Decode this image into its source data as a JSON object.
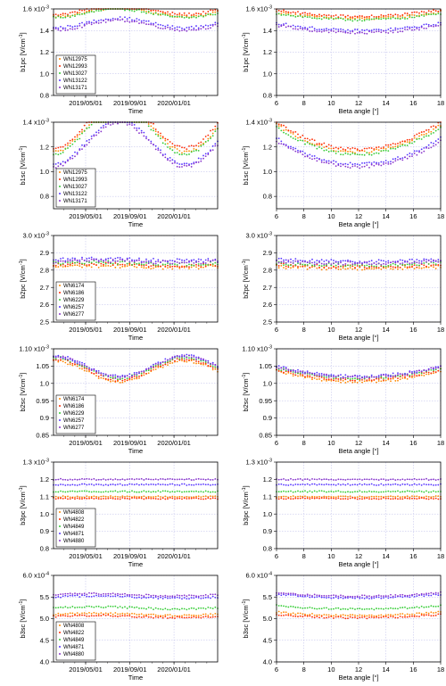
{
  "chart_data": [
    {
      "type": "scatter",
      "panel": "b1pc-time",
      "ylabel_main": "b1pc [V/cm",
      "ylabel_exp": "-1",
      "ylabel_end": "]",
      "xlabel": "Time",
      "x_axis": "time",
      "xlim": [
        "2019-02-01",
        "2020-05-01"
      ],
      "ylim": [
        0.8,
        1.6
      ],
      "yticks": [
        0.8,
        1.0,
        1.2,
        1.4
      ],
      "top_tick_label": "1.6 x10",
      "top_tick_exp": "-3",
      "xticks": [
        {
          "label": "2019/05/01",
          "value": "2019-05-01"
        },
        {
          "label": "2019/09/01",
          "value": "2019-09-01"
        },
        {
          "label": "2020/01/01",
          "value": "2020-01-01"
        }
      ],
      "legend": "bottom-left",
      "series": [
        {
          "name": "WN12975",
          "color": "#ff8800",
          "level": 1.57,
          "amp": 0.04,
          "noise": 0.012
        },
        {
          "name": "WN12993",
          "color": "#ff2a00",
          "level": 1.59,
          "amp": 0.04,
          "noise": 0.012
        },
        {
          "name": "WN13027",
          "color": "#33cc33",
          "level": 1.56,
          "amp": 0.04,
          "noise": 0.012
        },
        {
          "name": "WN13122",
          "color": "#5533ff",
          "level": 1.47,
          "amp": 0.045,
          "noise": 0.012
        },
        {
          "name": "WN13171",
          "color": "#8833cc",
          "level": 1.45,
          "amp": 0.045,
          "noise": 0.012
        }
      ]
    },
    {
      "type": "scatter",
      "panel": "b1pc-beta",
      "ylabel_main": "b1pc [V/cm",
      "ylabel_exp": "-1",
      "ylabel_end": "]",
      "xlabel": "Beta angle [°]",
      "x_axis": "beta",
      "xlim": [
        6,
        18
      ],
      "ylim": [
        0.8,
        1.6
      ],
      "yticks": [
        0.8,
        1.0,
        1.2,
        1.4
      ],
      "top_tick_label": "1.6 x10",
      "top_tick_exp": "-3",
      "xticks": [
        6,
        8,
        10,
        12,
        14,
        16,
        18
      ],
      "series": [
        {
          "name": "WN12975",
          "color": "#ff8800",
          "level": 1.57,
          "amp": 0.06,
          "noise": 0.012
        },
        {
          "name": "WN12993",
          "color": "#ff2a00",
          "level": 1.59,
          "amp": 0.06,
          "noise": 0.012
        },
        {
          "name": "WN13027",
          "color": "#33cc33",
          "level": 1.56,
          "amp": 0.06,
          "noise": 0.012
        },
        {
          "name": "WN13122",
          "color": "#5533ff",
          "level": 1.47,
          "amp": 0.07,
          "noise": 0.012
        },
        {
          "name": "WN13171",
          "color": "#8833cc",
          "level": 1.45,
          "amp": 0.07,
          "noise": 0.012
        }
      ]
    },
    {
      "type": "scatter",
      "panel": "b1sc-time",
      "ylabel_main": "b1sc [V/cm",
      "ylabel_exp": "-1",
      "ylabel_end": "]",
      "xlabel": "Time",
      "x_axis": "time",
      "xlim": [
        "2019-02-01",
        "2020-05-01"
      ],
      "ylim": [
        0.7,
        1.4
      ],
      "yticks": [
        0.8,
        1.0,
        1.2
      ],
      "top_tick_label": "1.4 x10",
      "top_tick_exp": "-3",
      "xticks": [
        {
          "label": "2019/05/01",
          "value": "2019-05-01"
        },
        {
          "label": "2019/09/01",
          "value": "2019-09-01"
        },
        {
          "label": "2020/01/01",
          "value": "2020-01-01"
        }
      ],
      "legend": "bottom-left",
      "series": [
        {
          "name": "WN12975",
          "color": "#ff8800",
          "level": 1.36,
          "amp": 0.2,
          "noise": 0.012
        },
        {
          "name": "WN12993",
          "color": "#ff2a00",
          "level": 1.39,
          "amp": 0.2,
          "noise": 0.012
        },
        {
          "name": "WN13027",
          "color": "#33cc33",
          "level": 1.34,
          "amp": 0.2,
          "noise": 0.012
        },
        {
          "name": "WN13122",
          "color": "#5533ff",
          "level": 1.24,
          "amp": 0.18,
          "noise": 0.012
        },
        {
          "name": "WN13171",
          "color": "#8833cc",
          "level": 1.22,
          "amp": 0.18,
          "noise": 0.012
        }
      ]
    },
    {
      "type": "scatter",
      "panel": "b1sc-beta",
      "ylabel_main": "b1sc [V/cm",
      "ylabel_exp": "-1",
      "ylabel_end": "]",
      "xlabel": "Beta angle [°]",
      "x_axis": "beta",
      "xlim": [
        6,
        18
      ],
      "ylim": [
        0.7,
        1.4
      ],
      "yticks": [
        0.8,
        1.0,
        1.2
      ],
      "top_tick_label": "1.4 x10",
      "top_tick_exp": "-3",
      "xticks": [
        6,
        8,
        10,
        12,
        14,
        16,
        18
      ],
      "series": [
        {
          "name": "WN12975",
          "color": "#ff8800",
          "level": 1.38,
          "amp": 0.22,
          "noise": 0.012
        },
        {
          "name": "WN12993",
          "color": "#ff2a00",
          "level": 1.4,
          "amp": 0.22,
          "noise": 0.012
        },
        {
          "name": "WN13027",
          "color": "#33cc33",
          "level": 1.36,
          "amp": 0.22,
          "noise": 0.012
        },
        {
          "name": "WN13122",
          "color": "#5533ff",
          "level": 1.27,
          "amp": 0.21,
          "noise": 0.012
        },
        {
          "name": "WN13171",
          "color": "#8833cc",
          "level": 1.25,
          "amp": 0.21,
          "noise": 0.012
        }
      ]
    },
    {
      "type": "scatter",
      "panel": "b2pc-time",
      "ylabel_main": "b2pc [V/cm",
      "ylabel_exp": "-1",
      "ylabel_end": "]",
      "xlabel": "Time",
      "x_axis": "time",
      "xlim": [
        "2019-02-01",
        "2020-05-01"
      ],
      "ylim": [
        2.5,
        3.0
      ],
      "yticks": [
        2.5,
        2.6,
        2.7,
        2.8,
        2.9
      ],
      "top_tick_label": "3.0 x10",
      "top_tick_exp": "-3",
      "xticks": [
        {
          "label": "2019/05/01",
          "value": "2019-05-01"
        },
        {
          "label": "2019/09/01",
          "value": "2019-09-01"
        },
        {
          "label": "2020/01/01",
          "value": "2020-01-01"
        }
      ],
      "legend": "bottom-left",
      "series": [
        {
          "name": "WN6174",
          "color": "#ff8800",
          "level": 2.82,
          "amp": 0.01,
          "noise": 0.01
        },
        {
          "name": "WN6186",
          "color": "#ff2a00",
          "level": 2.83,
          "amp": 0.01,
          "noise": 0.01
        },
        {
          "name": "WN6229",
          "color": "#33cc33",
          "level": 2.84,
          "amp": 0.01,
          "noise": 0.01
        },
        {
          "name": "WN6257",
          "color": "#5533ff",
          "level": 2.86,
          "amp": 0.01,
          "noise": 0.01
        },
        {
          "name": "WN6277",
          "color": "#8833cc",
          "level": 2.85,
          "amp": 0.01,
          "noise": 0.01
        }
      ]
    },
    {
      "type": "scatter",
      "panel": "b2pc-beta",
      "ylabel_main": "b2pc [V/cm",
      "ylabel_exp": "-1",
      "ylabel_end": "]",
      "xlabel": "Beta angle [°]",
      "x_axis": "beta",
      "xlim": [
        6,
        18
      ],
      "ylim": [
        2.5,
        3.0
      ],
      "yticks": [
        2.5,
        2.6,
        2.7,
        2.8,
        2.9
      ],
      "top_tick_label": "3.0 x10",
      "top_tick_exp": "-3",
      "xticks": [
        6,
        8,
        10,
        12,
        14,
        16,
        18
      ],
      "series": [
        {
          "name": "WN6174",
          "color": "#ff8800",
          "level": 2.82,
          "amp": 0.01,
          "noise": 0.01
        },
        {
          "name": "WN6186",
          "color": "#ff2a00",
          "level": 2.83,
          "amp": 0.01,
          "noise": 0.01
        },
        {
          "name": "WN6229",
          "color": "#33cc33",
          "level": 2.84,
          "amp": 0.01,
          "noise": 0.01
        },
        {
          "name": "WN6257",
          "color": "#5533ff",
          "level": 2.86,
          "amp": 0.01,
          "noise": 0.01
        },
        {
          "name": "WN6277",
          "color": "#8833cc",
          "level": 2.85,
          "amp": 0.01,
          "noise": 0.01
        }
      ]
    },
    {
      "type": "scatter",
      "panel": "b2sc-time",
      "ylabel_main": "b2sc [V/cm",
      "ylabel_exp": "-1",
      "ylabel_end": "]",
      "xlabel": "Time",
      "x_axis": "time",
      "xlim": [
        "2019-02-01",
        "2020-05-01"
      ],
      "ylim": [
        0.85,
        1.1
      ],
      "yticks": [
        0.85,
        0.9,
        0.95,
        1.0,
        1.05
      ],
      "top_tick_label": "1.10 x10",
      "top_tick_exp": "-3",
      "xticks": [
        {
          "label": "2019/05/01",
          "value": "2019-05-01"
        },
        {
          "label": "2019/09/01",
          "value": "2019-09-01"
        },
        {
          "label": "2020/01/01",
          "value": "2020-01-01"
        }
      ],
      "legend": "bottom-left",
      "series": [
        {
          "name": "WN6174",
          "color": "#ff8800",
          "level": 1.035,
          "amp": 0.03,
          "noise": 0.004
        },
        {
          "name": "WN6186",
          "color": "#ff2a00",
          "level": 1.04,
          "amp": 0.03,
          "noise": 0.004
        },
        {
          "name": "WN6229",
          "color": "#33cc33",
          "level": 1.045,
          "amp": 0.03,
          "noise": 0.004
        },
        {
          "name": "WN6257",
          "color": "#5533ff",
          "level": 1.05,
          "amp": 0.03,
          "noise": 0.004
        },
        {
          "name": "WN6277",
          "color": "#8833cc",
          "level": 1.048,
          "amp": 0.03,
          "noise": 0.004
        }
      ]
    },
    {
      "type": "scatter",
      "panel": "b2sc-beta",
      "ylabel_main": "b2sc [V/cm",
      "ylabel_exp": "-1",
      "ylabel_end": "]",
      "xlabel": "Beta angle [°]",
      "x_axis": "beta",
      "xlim": [
        6,
        18
      ],
      "ylim": [
        0.85,
        1.1
      ],
      "yticks": [
        0.85,
        0.9,
        0.95,
        1.0,
        1.05
      ],
      "top_tick_label": "1.10 x10",
      "top_tick_exp": "-3",
      "xticks": [
        6,
        8,
        10,
        12,
        14,
        16,
        18
      ],
      "series": [
        {
          "name": "WN6174",
          "color": "#ff8800",
          "level": 1.035,
          "amp": 0.03,
          "noise": 0.004
        },
        {
          "name": "WN6186",
          "color": "#ff2a00",
          "level": 1.04,
          "amp": 0.03,
          "noise": 0.004
        },
        {
          "name": "WN6229",
          "color": "#33cc33",
          "level": 1.045,
          "amp": 0.03,
          "noise": 0.004
        },
        {
          "name": "WN6257",
          "color": "#5533ff",
          "level": 1.05,
          "amp": 0.03,
          "noise": 0.004
        },
        {
          "name": "WN6277",
          "color": "#8833cc",
          "level": 1.048,
          "amp": 0.03,
          "noise": 0.004
        }
      ]
    },
    {
      "type": "scatter",
      "panel": "b3pc-time",
      "ylabel_main": "b3pc [V/cm",
      "ylabel_exp": "-1",
      "ylabel_end": "]",
      "xlabel": "Time",
      "x_axis": "time",
      "xlim": [
        "2019-02-01",
        "2020-05-01"
      ],
      "ylim": [
        0.8,
        1.3
      ],
      "yticks": [
        0.8,
        0.9,
        1.0,
        1.1,
        1.2
      ],
      "top_tick_label": "1.3 x10",
      "top_tick_exp": "-3",
      "xticks": [
        {
          "label": "2019/05/01",
          "value": "2019-05-01"
        },
        {
          "label": "2019/09/01",
          "value": "2019-09-01"
        },
        {
          "label": "2020/01/01",
          "value": "2020-01-01"
        }
      ],
      "legend": "bottom-left",
      "series": [
        {
          "name": "WN4808",
          "color": "#ff8800",
          "level": 1.1,
          "amp": 0.0,
          "noise": 0.004
        },
        {
          "name": "WN4822",
          "color": "#ff2a00",
          "level": 1.09,
          "amp": 0.0,
          "noise": 0.004
        },
        {
          "name": "WN4849",
          "color": "#33cc33",
          "level": 1.13,
          "amp": 0.0,
          "noise": 0.004
        },
        {
          "name": "WN4871",
          "color": "#5533ff",
          "level": 1.17,
          "amp": 0.0,
          "noise": 0.004
        },
        {
          "name": "WN4880",
          "color": "#8833cc",
          "level": 1.2,
          "amp": 0.0,
          "noise": 0.004
        }
      ]
    },
    {
      "type": "scatter",
      "panel": "b3pc-beta",
      "ylabel_main": "b3pc [V/cm",
      "ylabel_exp": "-1",
      "ylabel_end": "]",
      "xlabel": "Beta angle [°]",
      "x_axis": "beta",
      "xlim": [
        6,
        18
      ],
      "ylim": [
        0.8,
        1.3
      ],
      "yticks": [
        0.8,
        0.9,
        1.0,
        1.1,
        1.2
      ],
      "top_tick_label": "1.3 x10",
      "top_tick_exp": "-3",
      "xticks": [
        6,
        8,
        10,
        12,
        14,
        16,
        18
      ],
      "series": [
        {
          "name": "WN4808",
          "color": "#ff8800",
          "level": 1.1,
          "amp": 0.0,
          "noise": 0.004
        },
        {
          "name": "WN4822",
          "color": "#ff2a00",
          "level": 1.09,
          "amp": 0.0,
          "noise": 0.004
        },
        {
          "name": "WN4849",
          "color": "#33cc33",
          "level": 1.13,
          "amp": 0.0,
          "noise": 0.004
        },
        {
          "name": "WN4871",
          "color": "#5533ff",
          "level": 1.17,
          "amp": 0.0,
          "noise": 0.004
        },
        {
          "name": "WN4880",
          "color": "#8833cc",
          "level": 1.2,
          "amp": 0.0,
          "noise": 0.004
        }
      ]
    },
    {
      "type": "scatter",
      "panel": "b3sc-time",
      "ylabel_main": "b3sc [V/cm",
      "ylabel_exp": "-1",
      "ylabel_end": "]",
      "xlabel": "Time",
      "x_axis": "time",
      "xlim": [
        "2019-02-01",
        "2020-05-01"
      ],
      "ylim": [
        4.0,
        6.0
      ],
      "yticks": [
        4.0,
        4.5,
        5.0,
        5.5
      ],
      "top_tick_label": "6.0 x10",
      "top_tick_exp": "-4",
      "xticks": [
        {
          "label": "2019/05/01",
          "value": "2019-05-01"
        },
        {
          "label": "2019/09/01",
          "value": "2019-09-01"
        },
        {
          "label": "2020/01/01",
          "value": "2020-01-01"
        }
      ],
      "legend": "bottom-left",
      "series": [
        {
          "name": "WN4808",
          "color": "#ff8800",
          "level": 5.1,
          "amp": 0.05,
          "noise": 0.02
        },
        {
          "name": "WN4822",
          "color": "#ff2a00",
          "level": 5.05,
          "amp": 0.05,
          "noise": 0.02
        },
        {
          "name": "WN4849",
          "color": "#33cc33",
          "level": 5.25,
          "amp": 0.05,
          "noise": 0.02
        },
        {
          "name": "WN4871",
          "color": "#5533ff",
          "level": 5.5,
          "amp": 0.05,
          "noise": 0.02
        },
        {
          "name": "WN4880",
          "color": "#8833cc",
          "level": 5.55,
          "amp": 0.05,
          "noise": 0.02
        }
      ]
    },
    {
      "type": "scatter",
      "panel": "b3sc-beta",
      "ylabel_main": "b3sc [V/cm",
      "ylabel_exp": "-1",
      "ylabel_end": "]",
      "xlabel": "Beta angle [°]",
      "x_axis": "beta",
      "xlim": [
        6,
        18
      ],
      "ylim": [
        4.0,
        6.0
      ],
      "yticks": [
        4.0,
        4.5,
        5.0,
        5.5
      ],
      "top_tick_label": "6.0 x10",
      "top_tick_exp": "-4",
      "xticks": [
        6,
        8,
        10,
        12,
        14,
        16,
        18
      ],
      "series": [
        {
          "name": "WN4808",
          "color": "#ff8800",
          "level": 5.15,
          "amp": 0.08,
          "noise": 0.02
        },
        {
          "name": "WN4822",
          "color": "#ff2a00",
          "level": 5.1,
          "amp": 0.08,
          "noise": 0.02
        },
        {
          "name": "WN4849",
          "color": "#33cc33",
          "level": 5.3,
          "amp": 0.08,
          "noise": 0.02
        },
        {
          "name": "WN4871",
          "color": "#5533ff",
          "level": 5.56,
          "amp": 0.08,
          "noise": 0.02
        },
        {
          "name": "WN4880",
          "color": "#8833cc",
          "level": 5.6,
          "amp": 0.08,
          "noise": 0.02
        }
      ]
    }
  ]
}
